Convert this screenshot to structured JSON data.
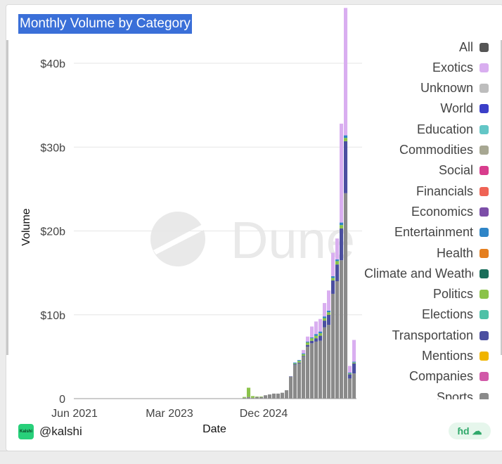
{
  "title": "Monthly Volume by Category",
  "watermark": "Dune",
  "footer": {
    "logo_text": "Kalshi",
    "handle": "@kalshi",
    "badge_glyph": "ɦd ☁"
  },
  "chart_data": {
    "type": "bar",
    "stacked": true,
    "title": "Monthly Volume by Category",
    "xlabel": "Date",
    "ylabel": "Volume",
    "ylim": [
      0,
      40000000000
    ],
    "ytick_values": [
      0,
      10000000000,
      20000000000,
      30000000000,
      40000000000
    ],
    "ytick_labels": [
      "0",
      "$10b",
      "$20b",
      "$30b",
      "$40b"
    ],
    "xtick_labels": [
      "Jun 2021",
      "Mar 2023",
      "Dec 2024"
    ],
    "grid": true,
    "legend_position": "right",
    "x": [
      "2021-06",
      "2021-07",
      "2021-08",
      "2021-09",
      "2021-10",
      "2021-11",
      "2021-12",
      "2022-01",
      "2022-02",
      "2022-03",
      "2022-04",
      "2022-05",
      "2022-06",
      "2022-07",
      "2022-08",
      "2022-09",
      "2022-10",
      "2022-11",
      "2022-12",
      "2023-01",
      "2023-02",
      "2023-03",
      "2023-04",
      "2023-05",
      "2023-06",
      "2023-07",
      "2023-08",
      "2023-09",
      "2023-10",
      "2023-11",
      "2023-12",
      "2024-01",
      "2024-02",
      "2024-03",
      "2024-04",
      "2024-05",
      "2024-06",
      "2024-07",
      "2024-08",
      "2024-09",
      "2024-10",
      "2024-11",
      "2024-12",
      "2025-01",
      "2025-02",
      "2025-03",
      "2025-04",
      "2025-05",
      "2025-06",
      "2025-07",
      "2025-08",
      "2025-09",
      "2025-10",
      "2025-11",
      "2025-12",
      "2026-01",
      "2026-02",
      "2026-03",
      "2026-04",
      "2026-05",
      "2026-06",
      "2026-07",
      "2026-08",
      "2026-09",
      "2026-10",
      "2026-11",
      "2026-12"
    ],
    "series": [
      {
        "name": "Sports",
        "color": "#8a8a8a",
        "values": [
          0.02,
          0.02,
          0.02,
          0.02,
          0.02,
          0.02,
          0.02,
          0.02,
          0.02,
          0.02,
          0.02,
          0.02,
          0.02,
          0.02,
          0.02,
          0.02,
          0.02,
          0.02,
          0.02,
          0.02,
          0.02,
          0.02,
          0.02,
          0.02,
          0.02,
          0.02,
          0.02,
          0.02,
          0.02,
          0.02,
          0.02,
          0.02,
          0.02,
          0.02,
          0.02,
          0.02,
          0.02,
          0.02,
          0.02,
          0.02,
          0.1,
          0.2,
          0.1,
          0.2,
          0.2,
          0.4,
          0.5,
          0.6,
          0.6,
          0.7,
          1.0,
          2.6,
          4.0,
          4.2,
          5.0,
          6.2,
          6.6,
          6.8,
          6.9,
          8.5,
          8.8,
          12.5,
          14.0,
          16.5,
          24.5,
          2.4,
          3.0
        ]
      },
      {
        "name": "Transportation",
        "color": "#4b4fa0",
        "values": [
          0,
          0,
          0,
          0,
          0,
          0,
          0,
          0,
          0,
          0,
          0,
          0,
          0,
          0,
          0,
          0,
          0,
          0,
          0,
          0,
          0,
          0,
          0,
          0,
          0,
          0,
          0,
          0,
          0,
          0,
          0,
          0,
          0,
          0,
          0,
          0,
          0,
          0,
          0,
          0,
          0,
          0,
          0,
          0,
          0,
          0,
          0,
          0,
          0,
          0,
          0,
          0.05,
          0.1,
          0.1,
          0.1,
          0.2,
          0.3,
          0.4,
          0.6,
          0.8,
          1.2,
          1.6,
          2.0,
          3.8,
          6.2,
          0.5,
          1.2
        ]
      },
      {
        "name": "Politics",
        "color": "#8bc34a",
        "values": [
          0,
          0,
          0,
          0,
          0,
          0,
          0,
          0,
          0,
          0,
          0,
          0,
          0,
          0,
          0,
          0,
          0,
          0,
          0,
          0,
          0,
          0,
          0,
          0,
          0,
          0,
          0,
          0,
          0,
          0,
          0,
          0,
          0,
          0,
          0,
          0,
          0,
          0,
          0,
          0,
          0.1,
          1.1,
          0.2,
          0.05,
          0.05,
          0,
          0,
          0,
          0,
          0,
          0,
          0,
          0.1,
          0.2,
          0.2,
          0.3,
          0.3,
          0.3,
          0.3,
          0.3,
          0.3,
          0.3,
          0.4,
          0.4,
          0.4,
          0.1,
          0.1
        ]
      },
      {
        "name": "Entertainment",
        "color": "#2f85c7",
        "values": [
          0,
          0,
          0,
          0,
          0,
          0,
          0,
          0,
          0,
          0,
          0,
          0,
          0,
          0,
          0,
          0,
          0,
          0,
          0,
          0,
          0,
          0,
          0,
          0,
          0,
          0,
          0,
          0,
          0,
          0,
          0,
          0,
          0,
          0,
          0,
          0,
          0,
          0,
          0,
          0,
          0,
          0,
          0,
          0,
          0,
          0,
          0,
          0,
          0,
          0,
          0,
          0,
          0.1,
          0.1,
          0.1,
          0.1,
          0.1,
          0.2,
          0.2,
          0.2,
          0.2,
          0.2,
          0.2,
          0.3,
          0.3,
          0.1,
          0.1
        ]
      },
      {
        "name": "Exotics",
        "color": "#d9aef0",
        "values": [
          0,
          0,
          0,
          0,
          0,
          0,
          0,
          0,
          0,
          0,
          0,
          0,
          0,
          0,
          0,
          0,
          0,
          0,
          0,
          0,
          0,
          0,
          0,
          0,
          0,
          0,
          0,
          0,
          0,
          0,
          0,
          0,
          0,
          0,
          0,
          0,
          0,
          0,
          0,
          0,
          0,
          0,
          0,
          0,
          0,
          0,
          0,
          0,
          0,
          0,
          0,
          0,
          0,
          0,
          0.4,
          0.6,
          1.3,
          1.5,
          1.5,
          1.6,
          2.4,
          2.8,
          2.5,
          11.8,
          15.2,
          0.8,
          2.6
        ]
      }
    ]
  },
  "legend": [
    {
      "label": "All",
      "color": "#555555"
    },
    {
      "label": "Exotics",
      "color": "#d9aef0"
    },
    {
      "label": "Unknown",
      "color": "#bdbdbd"
    },
    {
      "label": "World",
      "color": "#3b3fc8"
    },
    {
      "label": "Education",
      "color": "#63c6c6"
    },
    {
      "label": "Commodities",
      "color": "#a7a792"
    },
    {
      "label": "Social",
      "color": "#d83d8d"
    },
    {
      "label": "Financials",
      "color": "#ef6355"
    },
    {
      "label": "Economics",
      "color": "#7c4ea8"
    },
    {
      "label": "Entertainment",
      "color": "#2f85c7"
    },
    {
      "label": "Health",
      "color": "#e57f1f"
    },
    {
      "label": "Climate and Weather",
      "color": "#1a6e5a"
    },
    {
      "label": "Politics",
      "color": "#8bc34a"
    },
    {
      "label": "Elections",
      "color": "#4fc1a7"
    },
    {
      "label": "Transportation",
      "color": "#4b4fa0"
    },
    {
      "label": "Mentions",
      "color": "#f0b400"
    },
    {
      "label": "Companies",
      "color": "#d159a8"
    },
    {
      "label": "Sports",
      "color": "#8a8a8a"
    }
  ]
}
